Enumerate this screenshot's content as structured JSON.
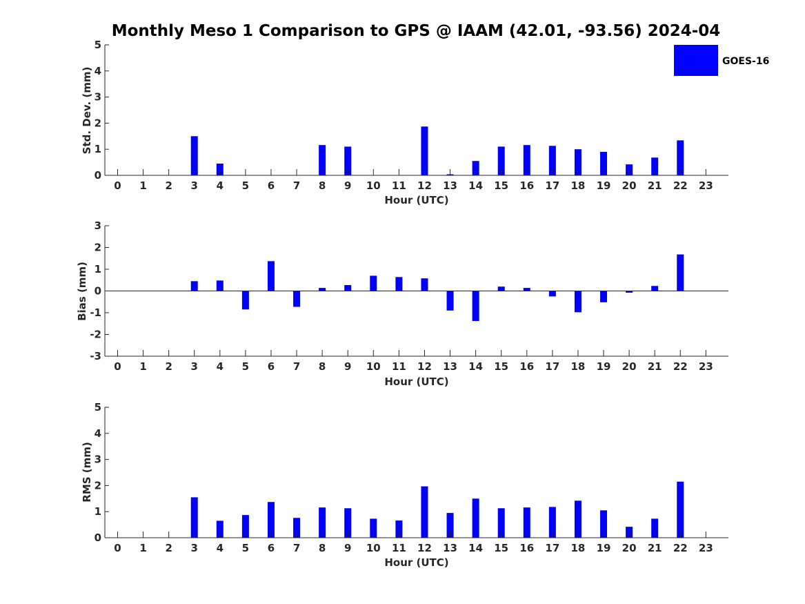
{
  "chart_data": {
    "title": "Monthly Meso 1 Comparison to GPS @ IAAM (42.01, -93.56) 2024-04",
    "legend": [
      {
        "label": "GOES-16",
        "color": "#0000ff",
        "placement": "top-right"
      }
    ],
    "bar_color": "#0000ff",
    "panels": [
      {
        "type": "bar",
        "ylabel": "Std. Dev. (mm)",
        "xlabel": "Hour (UTC)",
        "ylim": [
          0,
          5
        ],
        "yticks": [
          0,
          1,
          2,
          3,
          4,
          5
        ],
        "x": [
          0,
          1,
          2,
          3,
          4,
          5,
          6,
          7,
          8,
          9,
          10,
          11,
          12,
          13,
          14,
          15,
          16,
          17,
          18,
          19,
          20,
          21,
          22,
          23
        ],
        "values": [
          0,
          0,
          0,
          1.5,
          0.45,
          0,
          0,
          0,
          1.16,
          1.1,
          0,
          0,
          1.87,
          0.04,
          0.55,
          1.1,
          1.16,
          1.13,
          1.0,
          0.9,
          0.42,
          0.68,
          1.34,
          0
        ]
      },
      {
        "type": "bar",
        "ylabel": "Bias (mm)",
        "xlabel": "Hour (UTC)",
        "ylim": [
          -3,
          3
        ],
        "yticks": [
          -3,
          -2,
          -1,
          0,
          1,
          2,
          3
        ],
        "x": [
          0,
          1,
          2,
          3,
          4,
          5,
          6,
          7,
          8,
          9,
          10,
          11,
          12,
          13,
          14,
          15,
          16,
          17,
          18,
          19,
          20,
          21,
          22,
          23
        ],
        "values": [
          0,
          0,
          0,
          0.45,
          0.48,
          -0.85,
          1.37,
          -0.73,
          0.14,
          0.27,
          0.7,
          0.64,
          0.58,
          -0.9,
          -1.38,
          0.2,
          0.14,
          -0.25,
          -0.98,
          -0.52,
          -0.08,
          0.23,
          1.68,
          0
        ]
      },
      {
        "type": "bar",
        "ylabel": "RMS (mm)",
        "xlabel": "Hour (UTC)",
        "ylim": [
          0,
          5
        ],
        "yticks": [
          0,
          1,
          2,
          3,
          4,
          5
        ],
        "x": [
          0,
          1,
          2,
          3,
          4,
          5,
          6,
          7,
          8,
          9,
          10,
          11,
          12,
          13,
          14,
          15,
          16,
          17,
          18,
          19,
          20,
          21,
          22,
          23
        ],
        "values": [
          0,
          0,
          0,
          1.55,
          0.65,
          0.87,
          1.37,
          0.76,
          1.16,
          1.13,
          0.73,
          0.66,
          1.97,
          0.95,
          1.5,
          1.13,
          1.16,
          1.18,
          1.42,
          1.05,
          0.42,
          0.73,
          2.15,
          0
        ]
      }
    ]
  }
}
